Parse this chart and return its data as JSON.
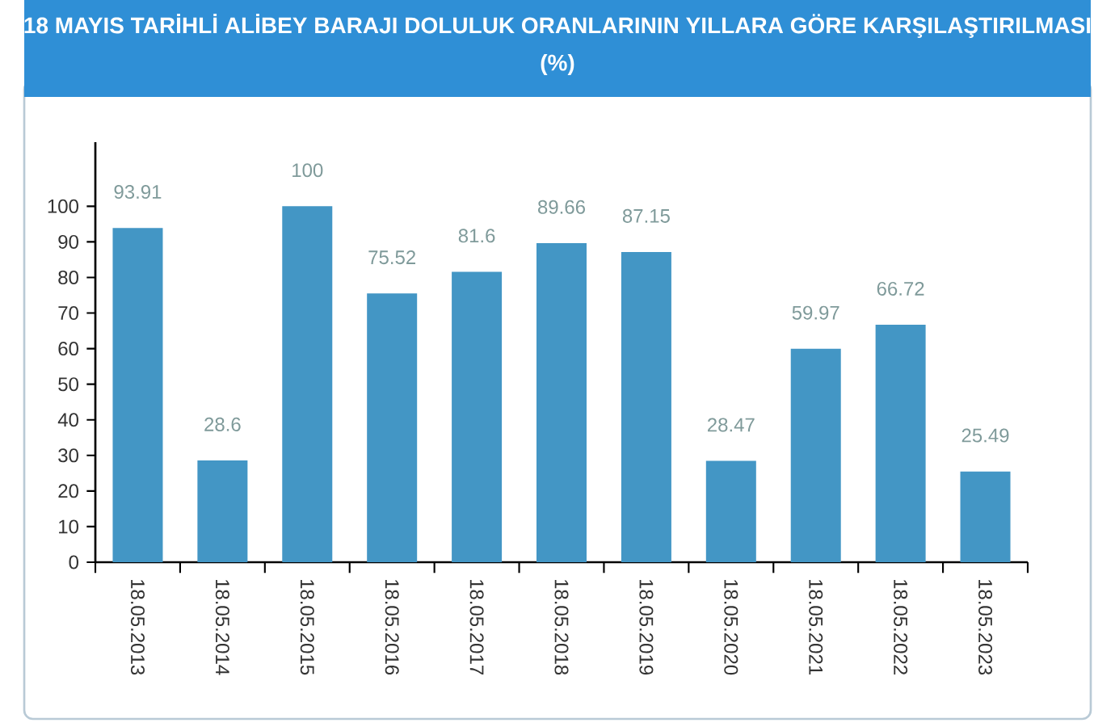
{
  "chart_data": {
    "type": "bar",
    "title": "18 MAYIS TARİHLİ ALİBEY BARAJI DOLULUK ORANLARININ YILLARA GÖRE KARŞILAŞTIRILMASI",
    "subtitle": "(%)",
    "categories": [
      "18.05.2013",
      "18.05.2014",
      "18.05.2015",
      "18.05.2016",
      "18.05.2017",
      "18.05.2018",
      "18.05.2019",
      "18.05.2020",
      "18.05.2021",
      "18.05.2022",
      "18.05.2023"
    ],
    "values": [
      93.91,
      28.6,
      100,
      75.52,
      81.6,
      89.66,
      87.15,
      28.47,
      59.97,
      66.72,
      25.49
    ],
    "color": "#4396c5",
    "data_labels": true,
    "grid": false,
    "ylim": [
      0,
      118
    ],
    "yticks": [
      0,
      10,
      20,
      30,
      40,
      50,
      60,
      70,
      80,
      90,
      100
    ]
  }
}
